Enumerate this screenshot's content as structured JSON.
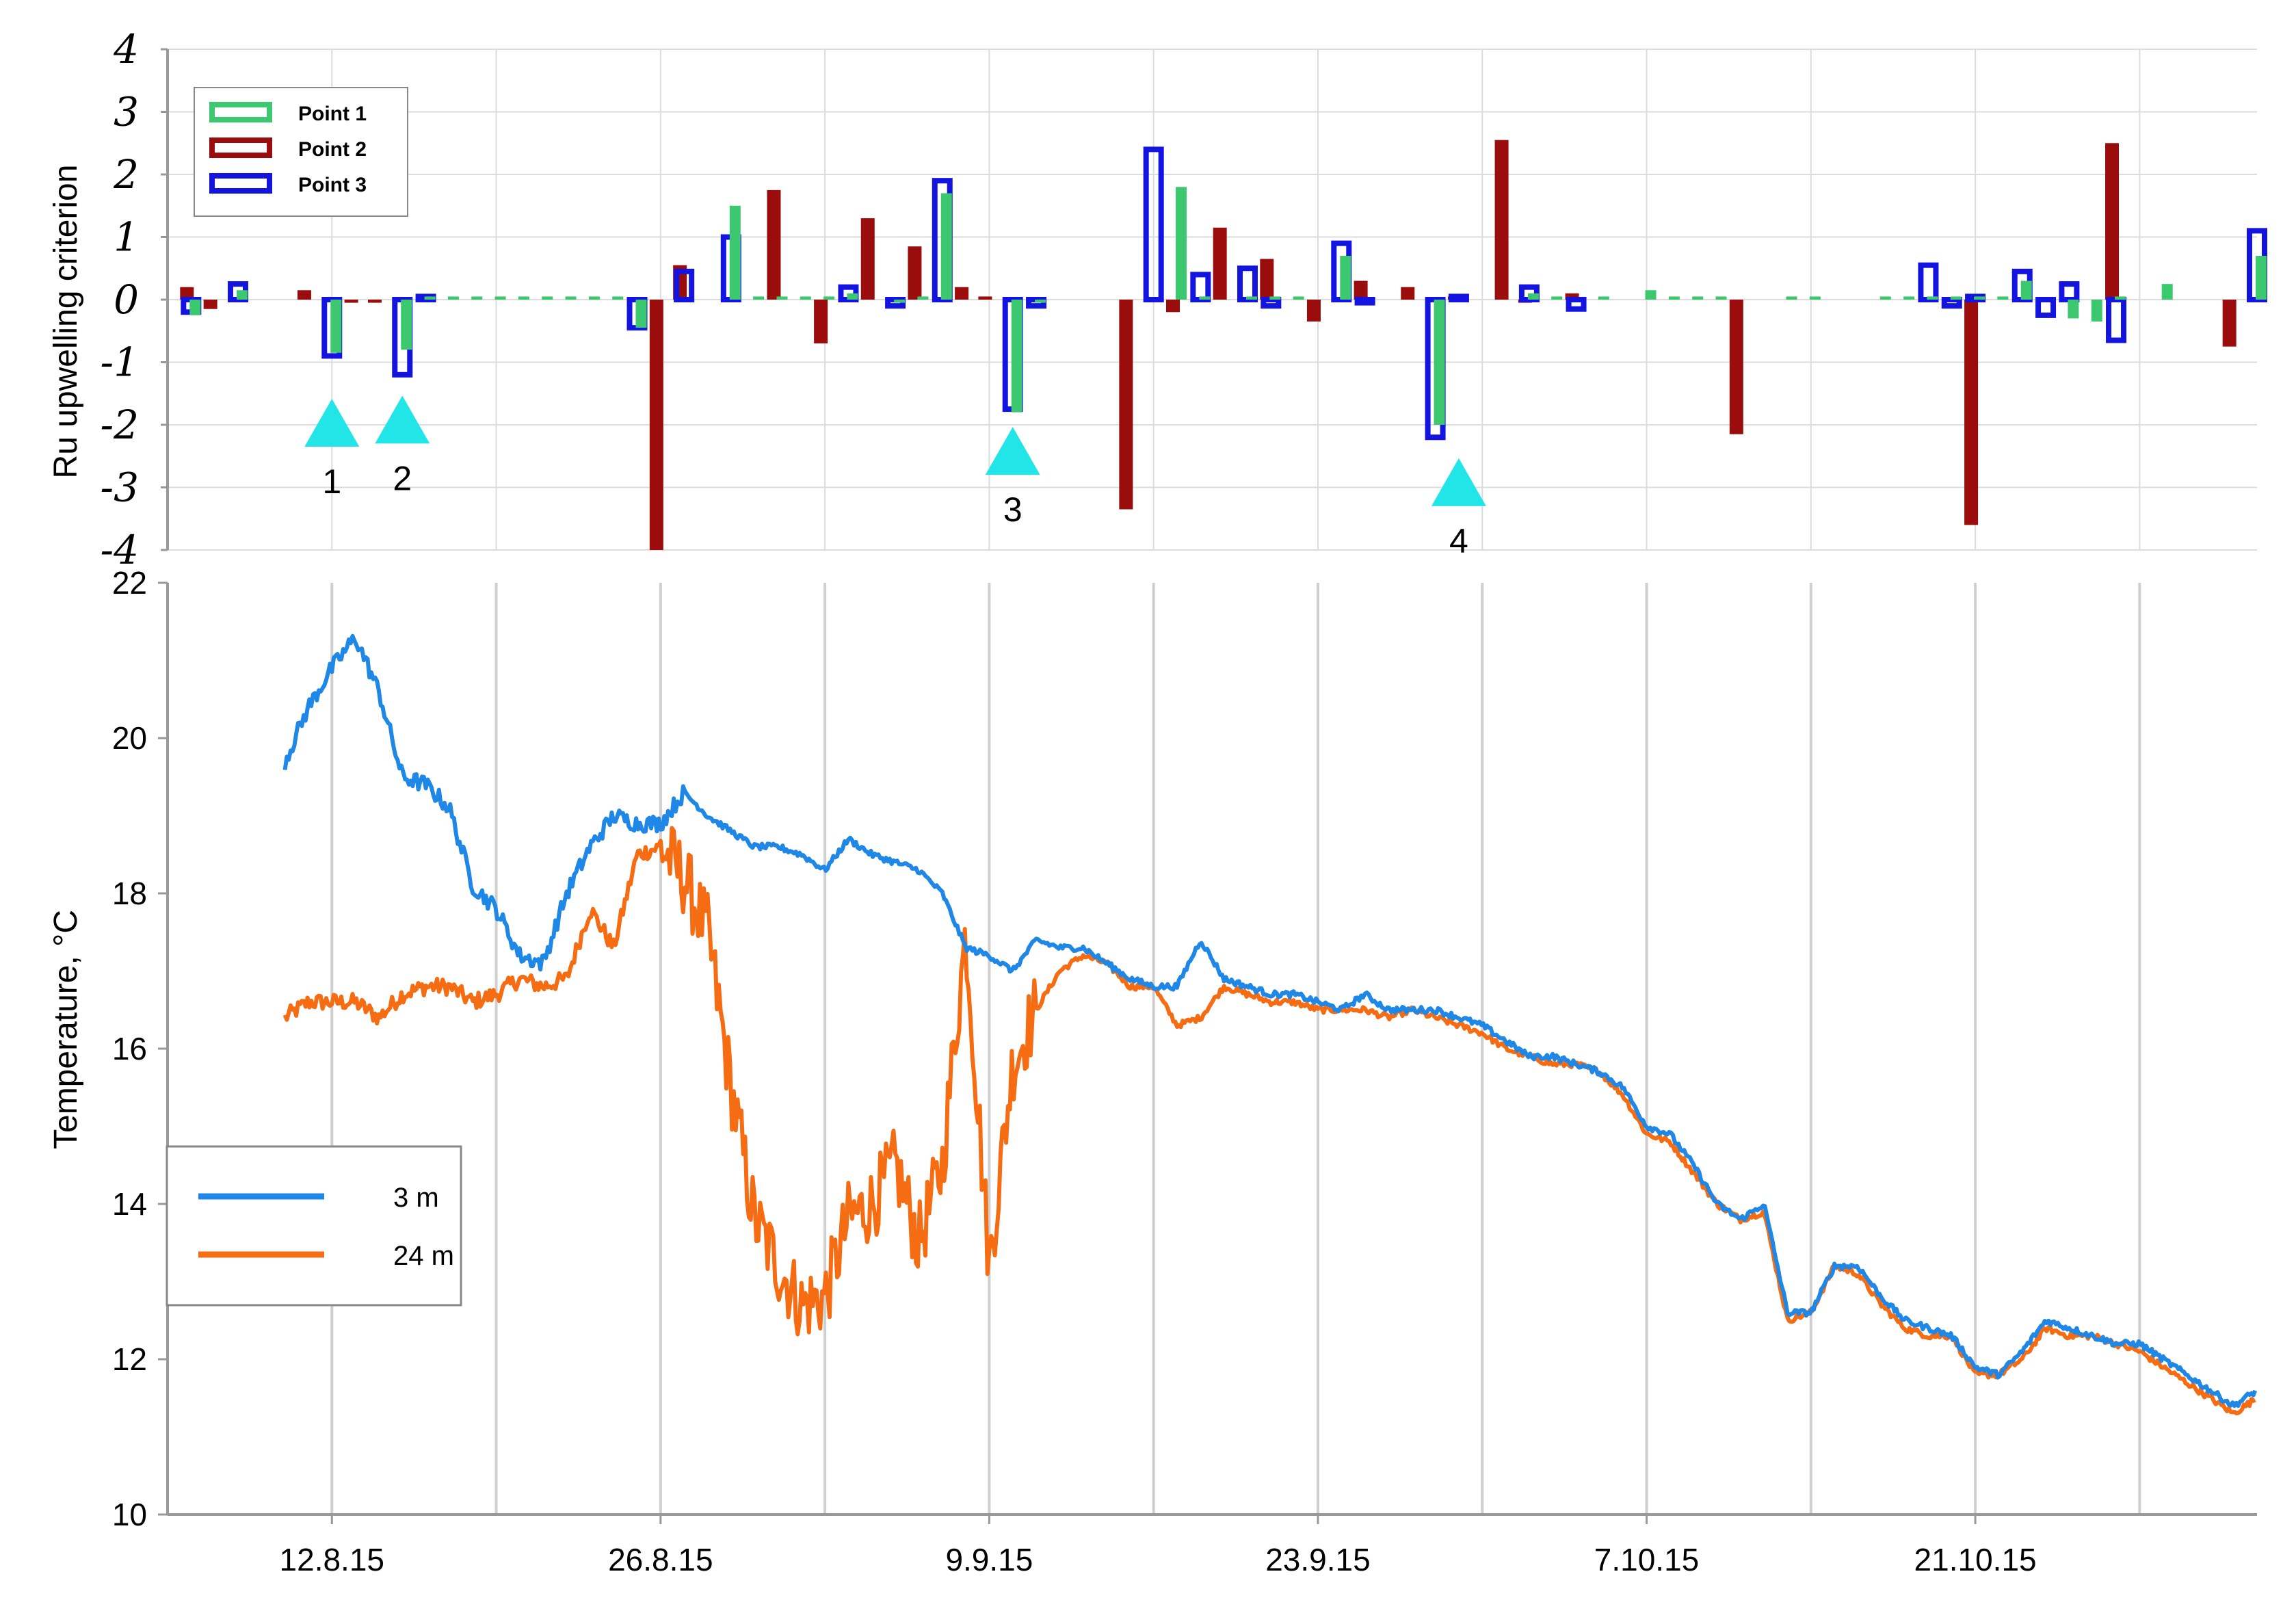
{
  "chart_data": [
    {
      "type": "bar",
      "ylabel": "Ru upwelling criterion",
      "ylim": [
        -4,
        4
      ],
      "yticks": [
        "4",
        "3",
        "2",
        "1",
        "0",
        "-1",
        "-2",
        "-3",
        "-4"
      ],
      "xlim": [
        "5.8.15",
        "2.11.15"
      ],
      "grid": true,
      "legend": {
        "position": "top-left",
        "entries": [
          "Point 1",
          "Point 2",
          "Point 3"
        ]
      },
      "colors": {
        "Point 1": "#3cc86e",
        "Point 2": "#9b0d0d",
        "Point 3": "#1414e0"
      },
      "series": [
        {
          "name": "Point 1",
          "points": [
            [
              "6.8.15",
              -0.25
            ],
            [
              "8.8.15",
              0.15
            ],
            [
              "12.8.15",
              -0.85
            ],
            [
              "15.8.15",
              -0.8
            ],
            [
              "16.8.15",
              0.05
            ],
            [
              "17.8.15",
              0.05
            ],
            [
              "18.8.15",
              0.05
            ],
            [
              "19.8.15",
              0.05
            ],
            [
              "20.8.15",
              0.05
            ],
            [
              "21.8.15",
              0.05
            ],
            [
              "22.8.15",
              0.05
            ],
            [
              "23.8.15",
              0.05
            ],
            [
              "24.8.15",
              0.05
            ],
            [
              "25.8.15",
              -0.45
            ],
            [
              "29.8.15",
              1.5
            ],
            [
              "30.8.15",
              0.05
            ],
            [
              "31.8.15",
              0.05
            ],
            [
              "1.9.15",
              0.05
            ],
            [
              "2.9.15",
              0.05
            ],
            [
              "3.9.15",
              0.1
            ],
            [
              "5.9.15",
              -0.05
            ],
            [
              "6.9.15",
              0.05
            ],
            [
              "7.9.15",
              1.7
            ],
            [
              "10.9.15",
              -1.8
            ],
            [
              "11.9.15",
              -0.05
            ],
            [
              "17.9.15",
              1.8
            ],
            [
              "18.9.15",
              0.05
            ],
            [
              "20.9.15",
              0.05
            ],
            [
              "21.9.15",
              0.05
            ],
            [
              "22.9.15",
              0.05
            ],
            [
              "24.9.15",
              0.7
            ],
            [
              "28.9.15",
              -2.0
            ],
            [
              "2.10.15",
              0.1
            ],
            [
              "3.10.15",
              0.05
            ],
            [
              "5.10.15",
              0.05
            ],
            [
              "7.10.15",
              0.15
            ],
            [
              "8.10.15",
              0.05
            ],
            [
              "9.10.15",
              0.05
            ],
            [
              "10.10.15",
              0.05
            ],
            [
              "13.10.15",
              0.05
            ],
            [
              "14.10.15",
              0.05
            ],
            [
              "17.10.15",
              0.05
            ],
            [
              "18.10.15",
              0.05
            ],
            [
              "19.10.15",
              0.05
            ],
            [
              "20.10.15",
              0.05
            ],
            [
              "21.10.15",
              0.05
            ],
            [
              "22.10.15",
              0.05
            ],
            [
              "23.10.15",
              0.3
            ],
            [
              "25.10.15",
              -0.3
            ],
            [
              "26.10.15",
              -0.35
            ],
            [
              "27.10.15",
              0.05
            ],
            [
              "29.10.15",
              0.25
            ],
            [
              "2.11.15",
              0.7
            ]
          ]
        },
        {
          "name": "Point 2",
          "points": [
            [
              "6.8.15",
              0.2
            ],
            [
              "7.8.15",
              -0.15
            ],
            [
              "11.8.15",
              0.15
            ],
            [
              "13.8.15",
              -0.05
            ],
            [
              "14.8.15",
              -0.05
            ],
            [
              "26.8.15",
              -4.0
            ],
            [
              "27.8.15",
              0.55
            ],
            [
              "31.8.15",
              1.75
            ],
            [
              "2.9.15",
              -0.7
            ],
            [
              "4.9.15",
              1.3
            ],
            [
              "6.9.15",
              0.85
            ],
            [
              "8.9.15",
              0.2
            ],
            [
              "9.9.15",
              0.05
            ],
            [
              "15.9.15",
              -3.35
            ],
            [
              "17.9.15",
              -0.2
            ],
            [
              "19.9.15",
              1.15
            ],
            [
              "21.9.15",
              0.65
            ],
            [
              "23.9.15",
              -0.35
            ],
            [
              "25.9.15",
              0.3
            ],
            [
              "27.9.15",
              0.2
            ],
            [
              "29.9.15",
              0.05
            ],
            [
              "1.10.15",
              2.55
            ],
            [
              "2.10.15",
              -0.05
            ],
            [
              "4.10.15",
              0.1
            ],
            [
              "11.10.15",
              -2.15
            ],
            [
              "21.10.15",
              -3.6
            ],
            [
              "27.10.15",
              2.5
            ],
            [
              "1.11.15",
              -0.75
            ]
          ]
        },
        {
          "name": "Point 3",
          "points": [
            [
              "6.8.15",
              -0.2
            ],
            [
              "8.8.15",
              0.25
            ],
            [
              "12.8.15",
              -0.9
            ],
            [
              "15.8.15",
              -1.2
            ],
            [
              "16.8.15",
              0.05
            ],
            [
              "25.8.15",
              -0.45
            ],
            [
              "27.8.15",
              0.45
            ],
            [
              "29.8.15",
              1.0
            ],
            [
              "3.9.15",
              0.2
            ],
            [
              "5.9.15",
              -0.1
            ],
            [
              "7.9.15",
              1.9
            ],
            [
              "10.9.15",
              -1.75
            ],
            [
              "11.9.15",
              -0.1
            ],
            [
              "16.9.15",
              2.4
            ],
            [
              "18.9.15",
              0.4
            ],
            [
              "20.9.15",
              0.5
            ],
            [
              "21.9.15",
              -0.1
            ],
            [
              "24.9.15",
              0.9
            ],
            [
              "25.9.15",
              -0.05
            ],
            [
              "28.9.15",
              -2.2
            ],
            [
              "29.9.15",
              0.05
            ],
            [
              "2.10.15",
              0.2
            ],
            [
              "4.10.15",
              -0.15
            ],
            [
              "19.10.15",
              0.55
            ],
            [
              "20.10.15",
              -0.1
            ],
            [
              "21.10.15",
              0.05
            ],
            [
              "23.10.15",
              0.45
            ],
            [
              "24.10.15",
              -0.25
            ],
            [
              "25.10.15",
              0.25
            ],
            [
              "27.10.15",
              -0.65
            ],
            [
              "2.11.15",
              1.1
            ]
          ]
        }
      ],
      "annotations": [
        {
          "label": "1",
          "x": "12.8.15",
          "y": -2.0
        },
        {
          "label": "2",
          "x": "15.8.15",
          "y": -1.95
        },
        {
          "label": "3",
          "x": "10.9.15",
          "y": -2.45
        },
        {
          "label": "4",
          "x": "29.9.15",
          "y": -2.95
        }
      ]
    },
    {
      "type": "line",
      "ylabel": "Temperature, °C",
      "ylim": [
        10,
        22
      ],
      "yticks": [
        "10",
        "12",
        "14",
        "16",
        "18",
        "20",
        "22"
      ],
      "xlim": [
        "5.8.15",
        "2.11.15"
      ],
      "xticks": [
        "12.8.15",
        "26.8.15",
        "9.9.15",
        "23.9.15",
        "7.10.15",
        "21.10.15"
      ],
      "grid": true,
      "legend": {
        "position": "lower-left",
        "entries": [
          "3 m",
          "24 m"
        ]
      },
      "colors": {
        "3 m": "#1f87e5",
        "24 m": "#f56c12"
      },
      "series": [
        {
          "name": "3 m",
          "x": [
            "10.8.15",
            "11.8.15",
            "12.8.15",
            "13.8.15",
            "14.8.15",
            "15.8.15",
            "16.8.15",
            "17.8.15",
            "18.8.15",
            "19.8.15",
            "20.8.15",
            "21.8.15",
            "22.8.15",
            "23.8.15",
            "24.8.15",
            "25.8.15",
            "26.8.15",
            "27.8.15",
            "28.8.15",
            "29.8.15",
            "30.8.15",
            "31.8.15",
            "1.9.15",
            "2.9.15",
            "3.9.15",
            "4.9.15",
            "5.9.15",
            "6.9.15",
            "7.9.15",
            "8.9.15",
            "9.9.15",
            "10.9.15",
            "11.9.15",
            "12.9.15",
            "13.9.15",
            "14.9.15",
            "15.9.15",
            "16.9.15",
            "17.9.15",
            "18.9.15",
            "19.9.15",
            "20.9.15",
            "21.9.15",
            "22.9.15",
            "23.9.15",
            "24.9.15",
            "25.9.15",
            "26.9.15",
            "27.9.15",
            "28.9.15",
            "29.9.15",
            "30.9.15",
            "1.10.15",
            "2.10.15",
            "3.10.15",
            "4.10.15",
            "5.10.15",
            "6.10.15",
            "7.10.15",
            "8.10.15",
            "9.10.15",
            "10.10.15",
            "11.10.15",
            "12.10.15",
            "13.10.15",
            "14.10.15",
            "15.10.15",
            "16.10.15",
            "17.10.15",
            "18.10.15",
            "19.10.15",
            "20.10.15",
            "21.10.15",
            "22.10.15",
            "23.10.15",
            "24.10.15",
            "25.10.15",
            "26.10.15",
            "27.10.15",
            "28.10.15",
            "29.10.15",
            "30.10.15",
            "31.10.15",
            "1.11.15",
            "2.11.15"
          ],
          "values": [
            19.7,
            20.4,
            20.9,
            21.3,
            20.6,
            19.5,
            19.4,
            19.1,
            18.1,
            17.8,
            17.2,
            17.1,
            18.0,
            18.6,
            19.0,
            18.9,
            18.9,
            19.3,
            19.0,
            18.8,
            18.6,
            18.6,
            18.5,
            18.3,
            18.7,
            18.5,
            18.4,
            18.3,
            18.0,
            17.3,
            17.2,
            17.0,
            17.4,
            17.3,
            17.3,
            17.1,
            16.9,
            16.8,
            16.8,
            17.4,
            16.9,
            16.8,
            16.7,
            16.7,
            16.6,
            16.5,
            16.7,
            16.5,
            16.5,
            16.5,
            16.4,
            16.3,
            16.1,
            15.9,
            15.9,
            15.8,
            15.7,
            15.5,
            15.0,
            14.9,
            14.5,
            14.0,
            13.8,
            14.0,
            12.6,
            12.6,
            13.2,
            13.2,
            12.8,
            12.5,
            12.4,
            12.3,
            11.9,
            11.8,
            12.1,
            12.5,
            12.4,
            12.3,
            12.2,
            12.2,
            12.0,
            11.8,
            11.6,
            11.4,
            11.6
          ]
        },
        {
          "name": "24 m",
          "x": [
            "10.8.15",
            "11.8.15",
            "12.8.15",
            "13.8.15",
            "14.8.15",
            "15.8.15",
            "16.8.15",
            "17.8.15",
            "18.8.15",
            "19.8.15",
            "20.8.15",
            "21.8.15",
            "22.8.15",
            "23.8.15",
            "24.8.15",
            "25.8.15",
            "26.8.15",
            "27.8.15",
            "28.8.15",
            "29.8.15",
            "30.8.15",
            "31.8.15",
            "1.9.15",
            "2.9.15",
            "3.9.15",
            "4.9.15",
            "5.9.15",
            "6.9.15",
            "7.9.15",
            "8.9.15",
            "9.9.15",
            "10.9.15",
            "11.9.15",
            "12.9.15",
            "13.9.15",
            "14.9.15",
            "15.9.15",
            "16.9.15",
            "17.9.15",
            "18.9.15",
            "19.9.15",
            "20.9.15",
            "21.9.15",
            "22.9.15",
            "23.9.15",
            "24.9.15",
            "25.9.15",
            "26.9.15",
            "27.9.15",
            "28.9.15",
            "29.9.15",
            "30.9.15",
            "1.10.15",
            "2.10.15",
            "3.10.15",
            "4.10.15",
            "5.10.15",
            "6.10.15",
            "7.10.15",
            "8.10.15",
            "9.10.15",
            "10.10.15",
            "11.10.15",
            "12.10.15",
            "13.10.15",
            "14.10.15",
            "15.10.15",
            "16.10.15",
            "17.10.15",
            "18.10.15",
            "19.10.15",
            "20.10.15",
            "21.10.15",
            "22.10.15",
            "23.10.15",
            "24.10.15",
            "25.10.15",
            "26.10.15",
            "27.10.15",
            "28.10.15",
            "29.10.15",
            "30.10.15",
            "31.10.15",
            "1.11.15",
            "2.11.15"
          ],
          "values": [
            16.4,
            16.6,
            16.6,
            16.6,
            16.4,
            16.7,
            16.8,
            16.8,
            16.6,
            16.7,
            16.9,
            16.8,
            16.9,
            17.8,
            17.3,
            18.5,
            18.6,
            18.2,
            17.5,
            15.5,
            13.8,
            13.2,
            12.7,
            12.8,
            13.8,
            14.0,
            14.5,
            13.5,
            14.5,
            17.5,
            13.2,
            15.8,
            16.5,
            17.0,
            17.2,
            17.1,
            16.8,
            16.8,
            16.3,
            16.4,
            16.8,
            16.7,
            16.6,
            16.6,
            16.5,
            16.5,
            16.5,
            16.4,
            16.5,
            16.4,
            16.3,
            16.2,
            16.0,
            15.9,
            15.8,
            15.8,
            15.7,
            15.4,
            14.9,
            14.8,
            14.4,
            14.0,
            13.8,
            13.9,
            12.5,
            12.6,
            13.2,
            13.1,
            12.7,
            12.4,
            12.3,
            12.3,
            11.8,
            11.8,
            12.0,
            12.4,
            12.3,
            12.3,
            12.2,
            12.1,
            11.9,
            11.7,
            11.5,
            11.3,
            11.5
          ]
        }
      ],
      "notes": "24 m series shows strong high-frequency oscillations (roughly 11.6–18.9 °C) between 26.8.15 and 10.9.15"
    }
  ]
}
